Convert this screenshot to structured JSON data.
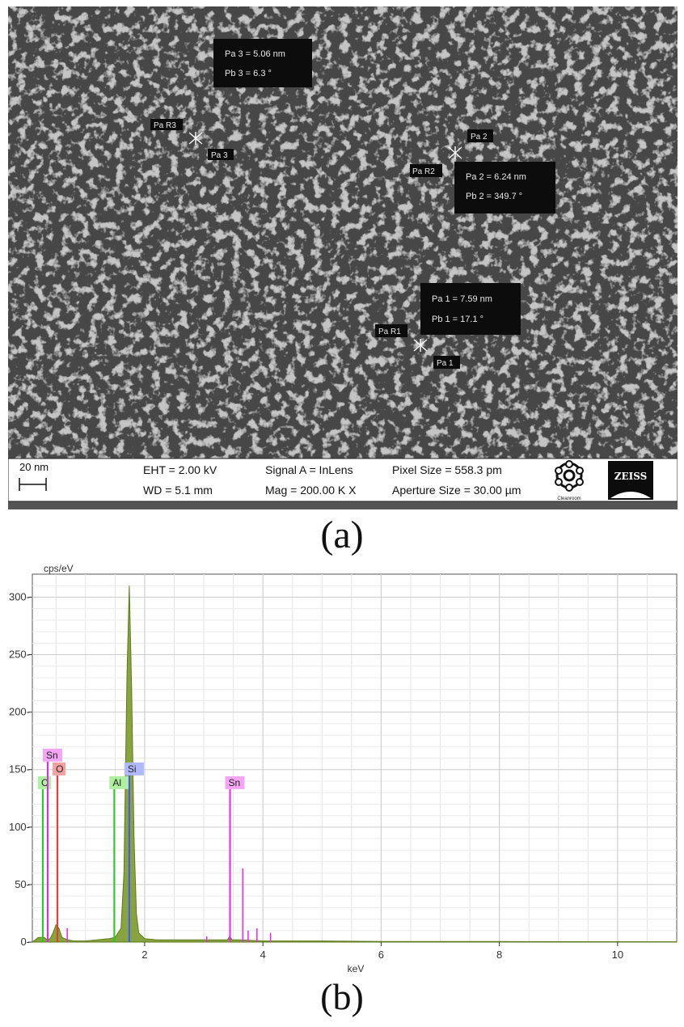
{
  "figure": {
    "panel_a_label": "(a)",
    "panel_b_label": "(b)"
  },
  "sem": {
    "measurements": [
      {
        "box_line1": "Pa 3 = 5.06 nm",
        "box_line2": "Pb 3 =  6.3 °",
        "tag_r": "Pa R3",
        "tag_p": "Pa 3"
      },
      {
        "box_line1": "Pa 2 = 6.24 nm",
        "box_line2": "Pb 2 = 349.7 °",
        "tag_r": "Pa R2",
        "tag_p": "Pa 2"
      },
      {
        "box_line1": "Pa 1 = 7.59 nm",
        "box_line2": "Pb 1 =  17.1 °",
        "tag_r": "Pa R1",
        "tag_p": "Pa 1"
      }
    ],
    "info_bar": {
      "scale_label": "20 nm",
      "eht": "EHT =  2.00 kV",
      "wd": "WD = 5.1 mm",
      "signal": "Signal A = InLens",
      "mag": "Mag = 200.00 K X",
      "pixel_size": "Pixel Size = 558.3 pm",
      "aperture": "Aperture Size = 30.00 µm",
      "logo_text": "ZEISS",
      "emblem_caption": "Cleanroom"
    }
  },
  "chart_data": {
    "type": "line",
    "title": "",
    "ylabel": "cps/eV",
    "xlabel": "keV",
    "xlim": [
      0.1,
      11
    ],
    "ylim": [
      0,
      320
    ],
    "xticks": [
      2,
      4,
      6,
      8,
      10
    ],
    "yticks": [
      0,
      50,
      100,
      150,
      200,
      250,
      300
    ],
    "grid": true,
    "series": [
      {
        "color": "#7a9a2a",
        "x": [
          0.1,
          0.2,
          0.3,
          0.35,
          0.4,
          0.45,
          0.5,
          0.55,
          0.6,
          0.7,
          0.8,
          1.0,
          1.2,
          1.4,
          1.5,
          1.6,
          1.65,
          1.7,
          1.74,
          1.78,
          1.82,
          1.86,
          1.9,
          2.0,
          2.2,
          2.5,
          3.0,
          3.4,
          3.44,
          3.48,
          3.6,
          4.0,
          5.0,
          6.0,
          8.0,
          11.0
        ],
        "y": [
          0,
          4,
          4,
          2,
          3,
          8,
          15,
          12,
          4,
          2,
          1,
          1,
          2,
          3,
          4,
          12,
          60,
          230,
          310,
          220,
          90,
          25,
          8,
          3,
          2,
          2,
          2,
          2,
          5,
          2,
          2,
          1,
          1,
          0.5,
          0.5,
          0.3
        ]
      }
    ],
    "element_lines": [
      {
        "element": "C",
        "energy": 0.277,
        "height": 133,
        "color": "#22cc22",
        "label_bg": "#aef0a0"
      },
      {
        "element": "Sn",
        "energy": 0.36,
        "height": 157,
        "color": "#ee22ee",
        "label_bg": "#f4a6f4"
      },
      {
        "element": "O",
        "energy": 0.525,
        "height": 145,
        "color": "#ee3333",
        "label_bg": "#f4a0a0"
      },
      {
        "element": "Al",
        "energy": 1.486,
        "height": 133,
        "color": "#22cc22",
        "label_bg": "#aef0a0"
      },
      {
        "element": "Si",
        "energy": 1.74,
        "height": 145,
        "color": "#4455ff",
        "label_bg": "#b0b8ff"
      },
      {
        "element": "Sn",
        "energy": 3.444,
        "height": 133,
        "color": "#ee22ee",
        "label_bg": "#f4a6f4"
      }
    ],
    "minor_sn_lines": [
      {
        "energy": 0.69,
        "height": 12
      },
      {
        "energy": 3.66,
        "height": 64
      },
      {
        "energy": 3.9,
        "height": 12
      },
      {
        "energy": 4.13,
        "height": 8
      },
      {
        "energy": 3.75,
        "height": 10
      },
      {
        "energy": 3.05,
        "height": 5
      }
    ]
  }
}
